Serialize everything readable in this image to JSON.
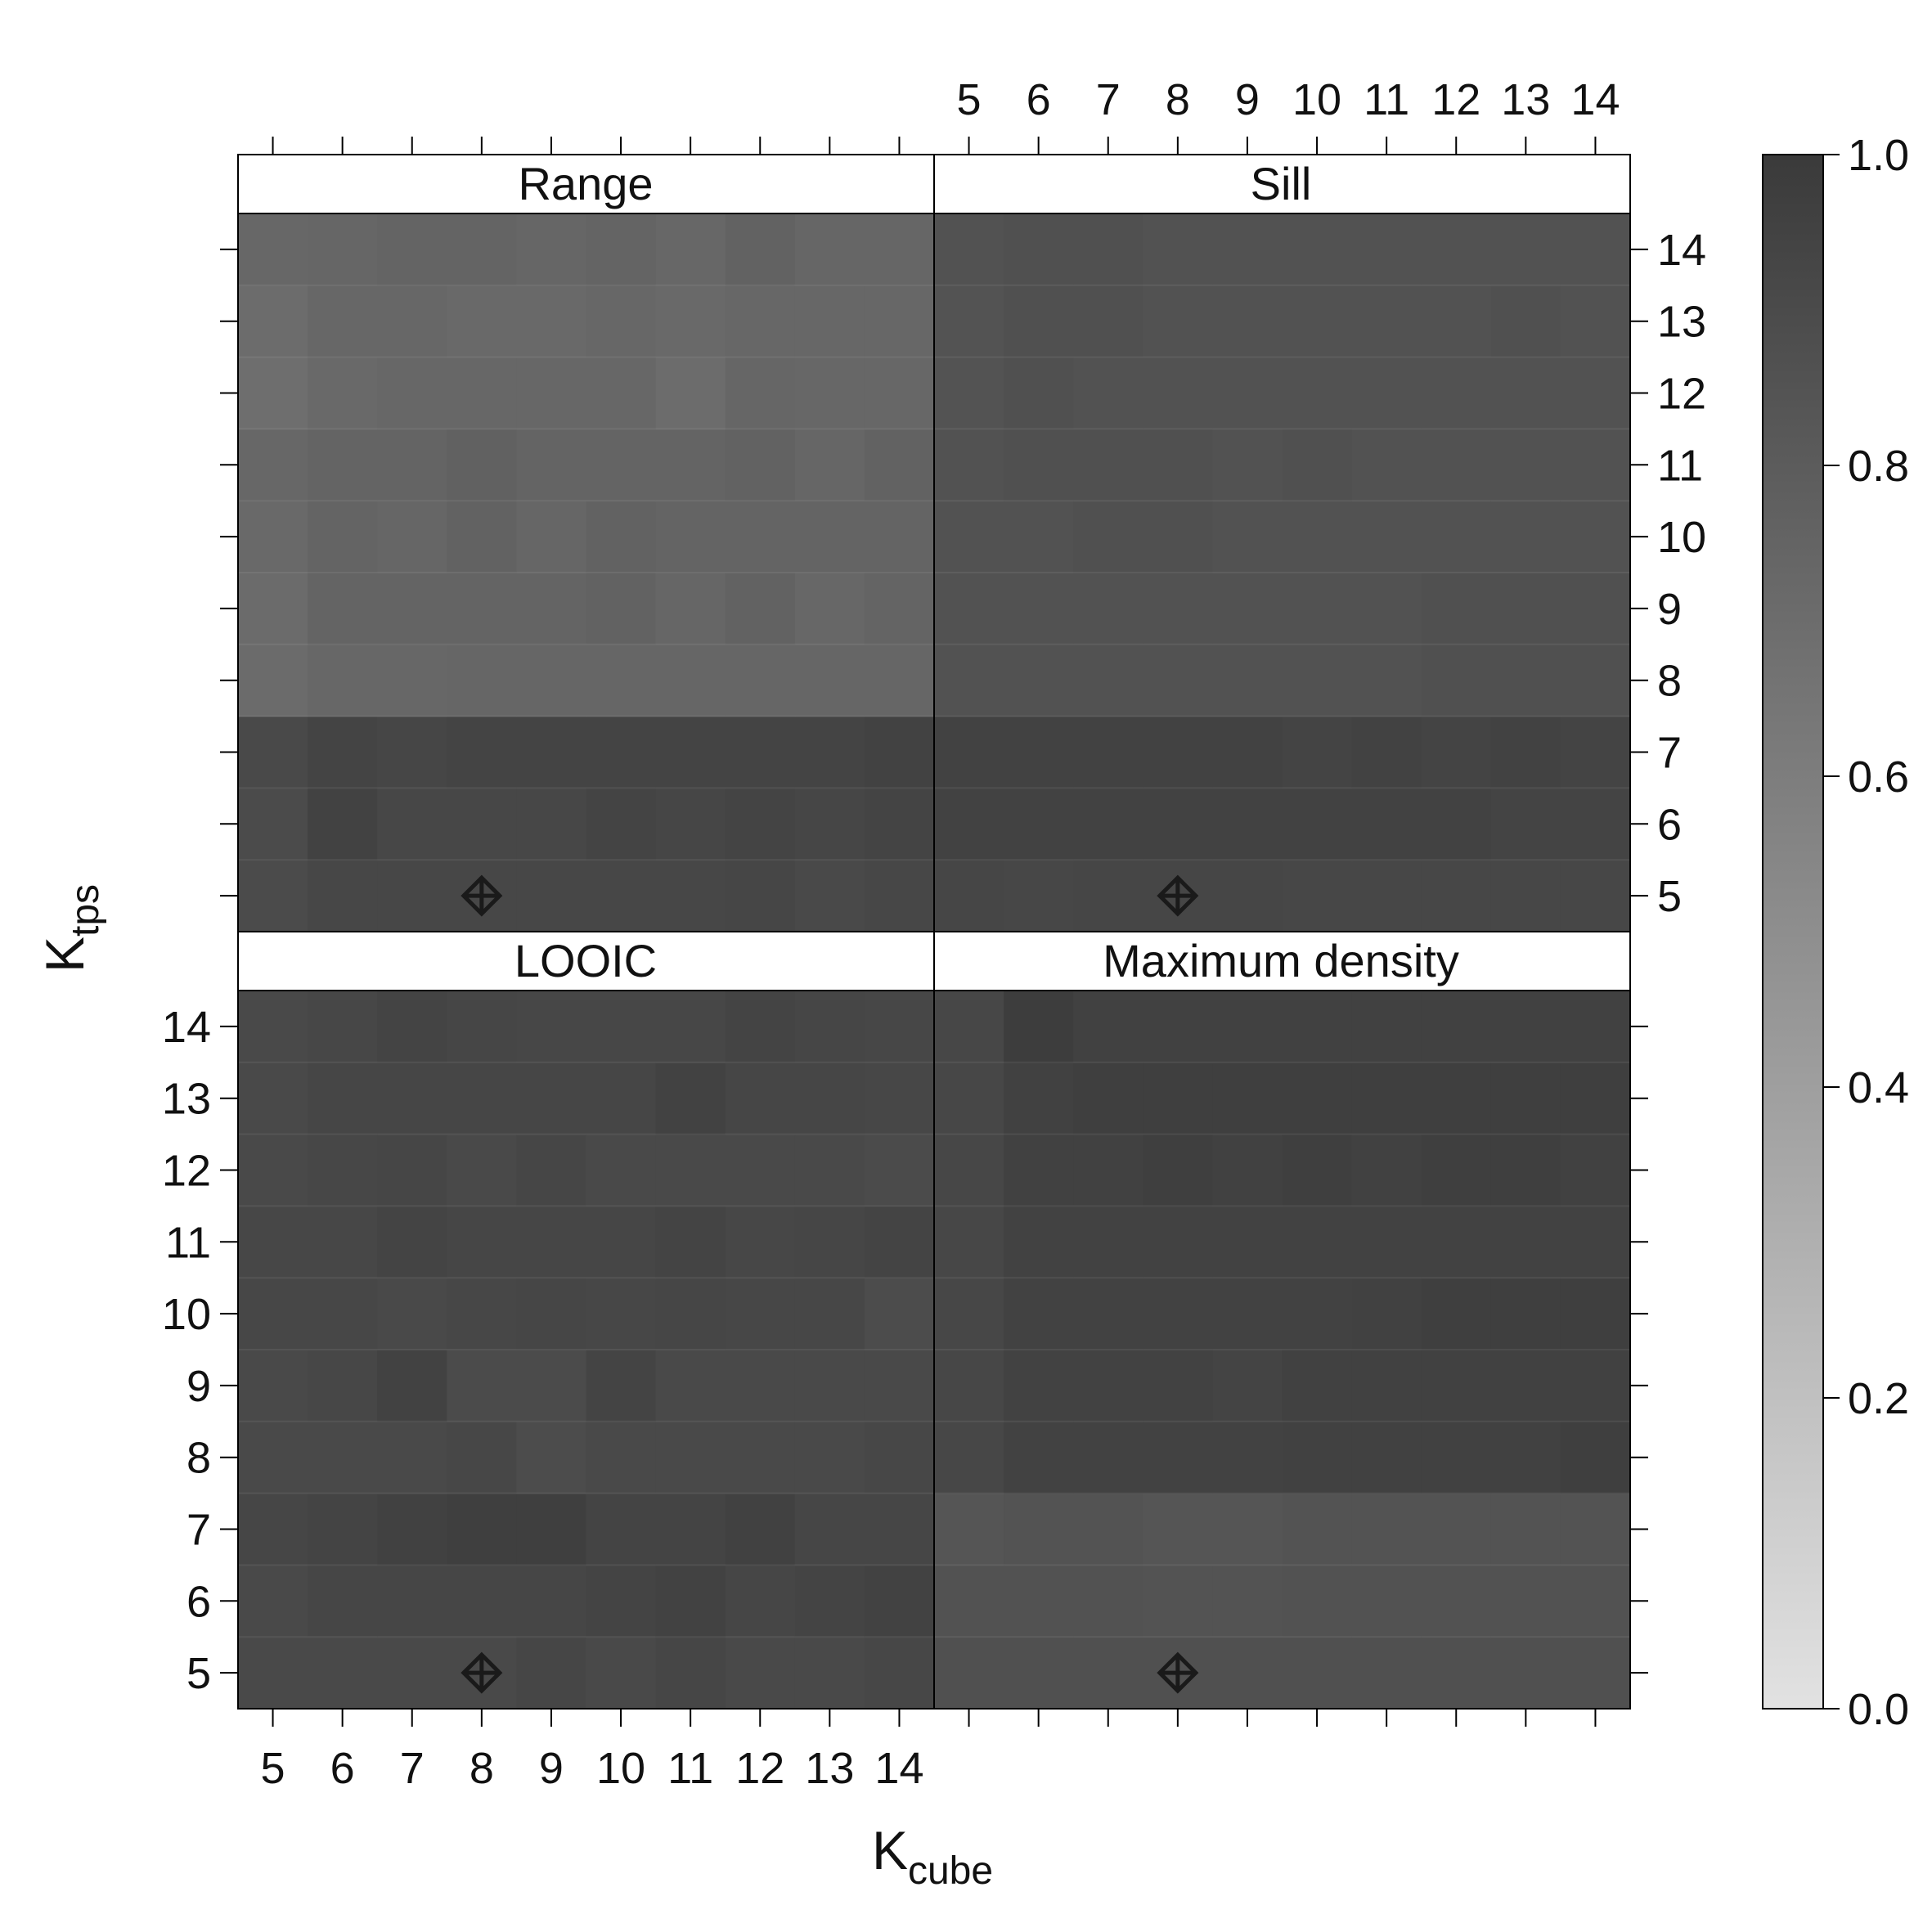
{
  "chart_data": {
    "type": "heatmap",
    "xlabel": {
      "base": "K",
      "sub": "cube"
    },
    "ylabel": {
      "base": "K",
      "sub": "tps"
    },
    "x_values": [
      5,
      6,
      7,
      8,
      9,
      10,
      11,
      12,
      13,
      14
    ],
    "y_values": [
      5,
      6,
      7,
      8,
      9,
      10,
      11,
      12,
      13,
      14
    ],
    "colorbar": {
      "min": 0.0,
      "max": 1.0,
      "ticks": [
        "0.0",
        "0.2",
        "0.4",
        "0.6",
        "0.8",
        "1.0"
      ],
      "color_low": "#e2e2e2",
      "color_high": "#3a3a3a"
    },
    "marker": {
      "x": 8,
      "y": 5,
      "symbol": "crossed-diamond"
    },
    "panels": [
      {
        "title": "Range",
        "z_rows_bottom_to_top": [
          [
            0.9,
            0.92,
            0.92,
            0.92,
            0.92,
            0.92,
            0.92,
            0.93,
            0.91,
            0.92
          ],
          [
            0.9,
            0.95,
            0.92,
            0.92,
            0.92,
            0.94,
            0.93,
            0.94,
            0.93,
            0.94
          ],
          [
            0.91,
            0.94,
            0.93,
            0.94,
            0.94,
            0.94,
            0.94,
            0.94,
            0.94,
            0.95
          ],
          [
            0.71,
            0.73,
            0.73,
            0.74,
            0.74,
            0.74,
            0.74,
            0.74,
            0.74,
            0.74
          ],
          [
            0.71,
            0.75,
            0.75,
            0.75,
            0.75,
            0.76,
            0.74,
            0.76,
            0.73,
            0.75
          ],
          [
            0.72,
            0.75,
            0.74,
            0.76,
            0.74,
            0.76,
            0.75,
            0.75,
            0.75,
            0.75
          ],
          [
            0.73,
            0.75,
            0.75,
            0.77,
            0.75,
            0.75,
            0.75,
            0.76,
            0.74,
            0.76
          ],
          [
            0.69,
            0.72,
            0.73,
            0.73,
            0.73,
            0.73,
            0.7,
            0.74,
            0.73,
            0.73
          ],
          [
            0.7,
            0.73,
            0.73,
            0.72,
            0.72,
            0.73,
            0.72,
            0.73,
            0.73,
            0.73
          ],
          [
            0.73,
            0.74,
            0.75,
            0.75,
            0.74,
            0.75,
            0.73,
            0.76,
            0.74,
            0.74
          ]
        ]
      },
      {
        "title": "Sill",
        "z_rows_bottom_to_top": [
          [
            0.93,
            0.92,
            0.93,
            0.93,
            0.93,
            0.92,
            0.92,
            0.92,
            0.92,
            0.92
          ],
          [
            0.95,
            0.95,
            0.95,
            0.95,
            0.95,
            0.95,
            0.95,
            0.95,
            0.94,
            0.94
          ],
          [
            0.95,
            0.95,
            0.95,
            0.95,
            0.95,
            0.94,
            0.95,
            0.94,
            0.95,
            0.94
          ],
          [
            0.86,
            0.86,
            0.86,
            0.86,
            0.86,
            0.86,
            0.86,
            0.87,
            0.87,
            0.87
          ],
          [
            0.86,
            0.86,
            0.86,
            0.86,
            0.86,
            0.86,
            0.86,
            0.87,
            0.87,
            0.87
          ],
          [
            0.86,
            0.86,
            0.87,
            0.87,
            0.86,
            0.86,
            0.86,
            0.86,
            0.86,
            0.86
          ],
          [
            0.86,
            0.87,
            0.87,
            0.87,
            0.86,
            0.87,
            0.86,
            0.86,
            0.86,
            0.86
          ],
          [
            0.85,
            0.87,
            0.86,
            0.86,
            0.86,
            0.86,
            0.86,
            0.86,
            0.86,
            0.86
          ],
          [
            0.85,
            0.87,
            0.87,
            0.86,
            0.86,
            0.86,
            0.86,
            0.86,
            0.87,
            0.86
          ],
          [
            0.86,
            0.87,
            0.87,
            0.86,
            0.86,
            0.86,
            0.86,
            0.86,
            0.86,
            0.86
          ]
        ]
      },
      {
        "title": "LOOIC",
        "z_rows_bottom_to_top": [
          [
            0.91,
            0.91,
            0.91,
            0.91,
            0.93,
            0.91,
            0.93,
            0.91,
            0.91,
            0.92
          ],
          [
            0.91,
            0.93,
            0.93,
            0.93,
            0.93,
            0.94,
            0.95,
            0.93,
            0.94,
            0.95
          ],
          [
            0.93,
            0.94,
            0.96,
            0.97,
            0.97,
            0.94,
            0.94,
            0.96,
            0.93,
            0.93
          ],
          [
            0.91,
            0.91,
            0.91,
            0.92,
            0.89,
            0.91,
            0.91,
            0.91,
            0.91,
            0.92
          ],
          [
            0.91,
            0.92,
            0.95,
            0.9,
            0.9,
            0.94,
            0.91,
            0.91,
            0.91,
            0.91
          ],
          [
            0.92,
            0.92,
            0.91,
            0.92,
            0.93,
            0.92,
            0.93,
            0.92,
            0.92,
            0.89
          ],
          [
            0.92,
            0.92,
            0.94,
            0.93,
            0.93,
            0.93,
            0.94,
            0.92,
            0.93,
            0.94
          ],
          [
            0.91,
            0.92,
            0.93,
            0.91,
            0.93,
            0.91,
            0.91,
            0.91,
            0.91,
            0.9
          ],
          [
            0.91,
            0.93,
            0.93,
            0.93,
            0.93,
            0.93,
            0.95,
            0.93,
            0.93,
            0.92
          ],
          [
            0.91,
            0.92,
            0.94,
            0.93,
            0.92,
            0.92,
            0.92,
            0.94,
            0.93,
            0.92
          ]
        ]
      },
      {
        "title": "Maximum density",
        "z_rows_bottom_to_top": [
          [
            0.87,
            0.87,
            0.87,
            0.87,
            0.87,
            0.87,
            0.87,
            0.87,
            0.87,
            0.87
          ],
          [
            0.86,
            0.86,
            0.86,
            0.85,
            0.85,
            0.86,
            0.86,
            0.86,
            0.86,
            0.86
          ],
          [
            0.84,
            0.85,
            0.85,
            0.84,
            0.84,
            0.85,
            0.85,
            0.85,
            0.85,
            0.85
          ],
          [
            0.92,
            0.95,
            0.95,
            0.95,
            0.95,
            0.96,
            0.96,
            0.96,
            0.96,
            0.97
          ],
          [
            0.92,
            0.95,
            0.95,
            0.95,
            0.94,
            0.96,
            0.96,
            0.96,
            0.96,
            0.96
          ],
          [
            0.92,
            0.95,
            0.95,
            0.95,
            0.95,
            0.95,
            0.96,
            0.97,
            0.97,
            0.97
          ],
          [
            0.92,
            0.95,
            0.95,
            0.95,
            0.95,
            0.95,
            0.95,
            0.95,
            0.95,
            0.95
          ],
          [
            0.92,
            0.96,
            0.96,
            0.97,
            0.96,
            0.97,
            0.96,
            0.97,
            0.97,
            0.96
          ],
          [
            0.92,
            0.96,
            0.97,
            0.97,
            0.97,
            0.97,
            0.97,
            0.97,
            0.97,
            0.97
          ],
          [
            0.92,
            0.98,
            0.96,
            0.96,
            0.96,
            0.96,
            0.96,
            0.96,
            0.96,
            0.96
          ]
        ]
      }
    ]
  }
}
